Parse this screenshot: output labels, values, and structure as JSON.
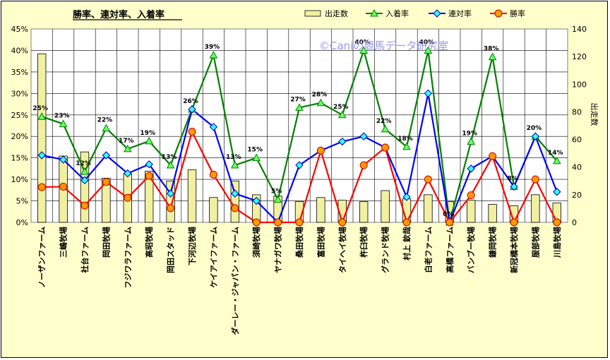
{
  "chart_data": {
    "type": "bar+line",
    "title": "勝率、連対率、入着率",
    "watermark": "©Caniの競馬データ研究室",
    "y_left": {
      "min": 0,
      "max": 45,
      "step": 5,
      "unit": "%"
    },
    "y_right": {
      "label": "出走数",
      "min": 0,
      "max": 140,
      "step": 20
    },
    "categories": [
      "ノーザンファーム",
      "三嶋牧場",
      "社台ファーム",
      "岡田牧場",
      "フジワラファーム",
      "高昭牧場",
      "岡田スタッド",
      "下河辺牧場",
      "ケイアイファーム",
      "ダーレー・ジャパン・ファーム",
      "須崎牧場",
      "ヤナガワ牧場",
      "桑田牧場",
      "富田牧場",
      "タイヘイ牧場",
      "杵臼牧場",
      "グランド牧場",
      "村上 欽哉",
      "白老ファーム",
      "高橋ファーム",
      "バンブー牧場",
      "鎌岡牧場",
      "新冠橋本牧場",
      "服部牧場",
      "川島牧場"
    ],
    "series": [
      {
        "name": "出走数",
        "kind": "bar",
        "axis": "right",
        "color": "#f0f0a0",
        "values": [
          122,
          48,
          51,
          32,
          35,
          37,
          30,
          38,
          18,
          30,
          20,
          19,
          15,
          18,
          16,
          15,
          23,
          17,
          20,
          15,
          16,
          13,
          12,
          20,
          14
        ]
      },
      {
        "name": "入着率",
        "kind": "line",
        "axis": "left",
        "color": "#008000",
        "marker": "triangle",
        "values": [
          24.6,
          22.9,
          11.8,
          21.9,
          17.1,
          18.9,
          13.3,
          26.3,
          38.9,
          13.3,
          15.0,
          5.3,
          26.7,
          27.8,
          25.0,
          40.0,
          21.7,
          17.6,
          40.0,
          0,
          18.8,
          38.5,
          8.3,
          20.0,
          14.3
        ],
        "labels": [
          "25%",
          "23%",
          "12%",
          "22%",
          "17%",
          "19%",
          "13%",
          "26%",
          "39%",
          "13%",
          "15%",
          "5%",
          "27%",
          "28%",
          "25%",
          "40%",
          "22%",
          "18%",
          "40%",
          "0%",
          "19%",
          "38%",
          "8%",
          "20%",
          "14%"
        ]
      },
      {
        "name": "連対率",
        "kind": "line",
        "axis": "left",
        "color": "#0000ff",
        "marker": "diamond",
        "values": [
          15.6,
          14.6,
          9.8,
          15.6,
          11.4,
          13.5,
          6.7,
          26.3,
          22.2,
          6.7,
          5.0,
          0,
          13.3,
          16.7,
          18.8,
          20.0,
          17.4,
          5.9,
          30.0,
          0,
          12.5,
          15.4,
          8.3,
          20.0,
          7.1
        ]
      },
      {
        "name": "勝率",
        "kind": "line",
        "axis": "left",
        "color": "#ff0000",
        "marker": "circle",
        "values": [
          8.2,
          8.3,
          3.9,
          9.4,
          5.7,
          10.8,
          3.3,
          21.1,
          11.1,
          3.3,
          0,
          0,
          0,
          16.7,
          0,
          13.3,
          17.4,
          0,
          10.0,
          0,
          6.3,
          15.4,
          0,
          10.0,
          0
        ]
      }
    ],
    "legend": [
      "出走数",
      "入着率",
      "連対率",
      "勝率"
    ],
    "legend_position": "top-right",
    "grid": true
  }
}
